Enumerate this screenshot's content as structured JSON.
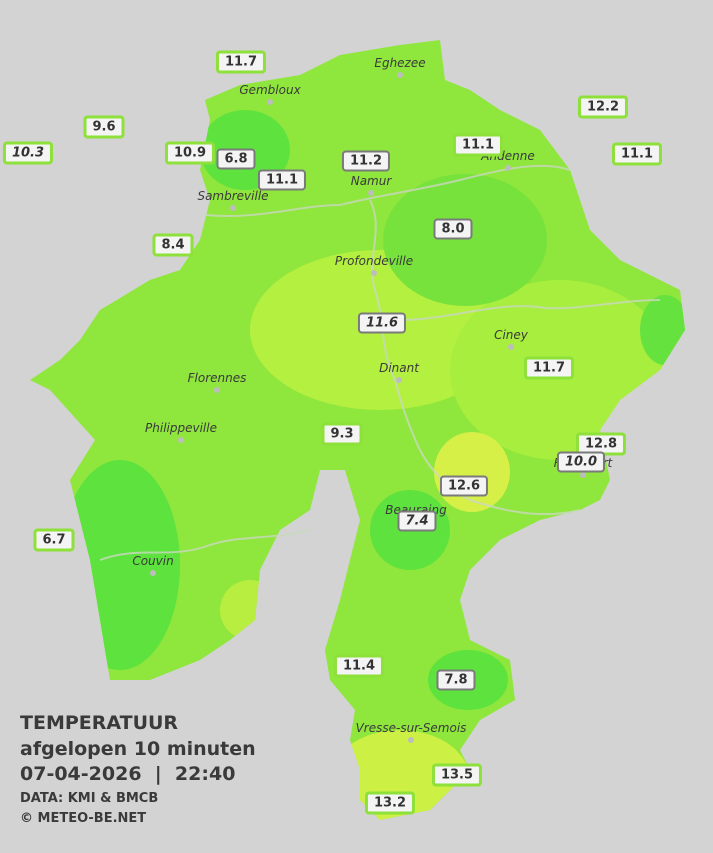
{
  "header": {
    "title": "TEMPERATUUR",
    "subtitle": "afgelopen 10 minuten",
    "datetime": "07-04-2026  |  22:40"
  },
  "footer": {
    "source": "DATA: KMI & BMCB",
    "copyright": "© METEO-BE.NET"
  },
  "cities": [
    "Eghezee",
    "Gembloux",
    "Andenne",
    "Namur",
    "Sambreville",
    "Profondeville",
    "Ciney",
    "Dinant",
    "Florennes",
    "Philippeville",
    "Rochefort",
    "Beauraing",
    "Couvin",
    "Vresse-sur-Semois"
  ],
  "stations": [
    "11.7",
    "9.6",
    "10.3",
    "10.9",
    "6.8",
    "11.1",
    "11.2",
    "11.1",
    "12.2",
    "11.1",
    "8.4",
    "8.0",
    "11.6",
    "11.7",
    "9.3",
    "12.8",
    "10.0",
    "12.6",
    "7.4",
    "6.7",
    "11.4",
    "7.8",
    "13.5",
    "13.2"
  ]
}
